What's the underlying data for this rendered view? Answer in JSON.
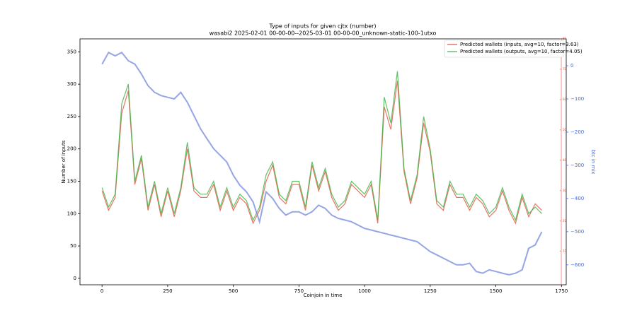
{
  "chart_data": {
    "type": "line",
    "title": "Type of inputs for given cjtx (number)",
    "subtitle": "wasabi2 2025-02-01 00-00-00--2025-03-01 00-00-00_unknown-static-100-1utxo",
    "xlabel": "Coinjoin in time",
    "ylabel": "Number of inputs",
    "y3label": "btc in mix",
    "xlim": [
      -84,
      1768
    ],
    "xticks": [
      0,
      250,
      500,
      750,
      1000,
      1250,
      1500,
      1750
    ],
    "ylim": [
      -10,
      370
    ],
    "yticks": [
      0,
      50,
      100,
      150,
      200,
      250,
      300,
      350
    ],
    "y2lim": [
      -1,
      80
    ],
    "y2ticks": [
      10,
      20,
      30,
      40,
      50,
      60,
      70,
      80
    ],
    "y3lim": [
      -660,
      81
    ],
    "y3ticks": [
      {
        "value": -600,
        "label": "−600"
      },
      {
        "value": -500,
        "label": "−500"
      },
      {
        "value": -400,
        "label": "−400"
      },
      {
        "value": -300,
        "label": "−300"
      },
      {
        "value": -200,
        "label": "−200"
      },
      {
        "value": -100,
        "label": "−100"
      },
      0
    ],
    "legend": "upper right",
    "x": [
      0,
      25,
      50,
      75,
      100,
      125,
      150,
      175,
      200,
      225,
      250,
      275,
      300,
      325,
      350,
      375,
      400,
      425,
      450,
      475,
      500,
      525,
      550,
      575,
      600,
      625,
      650,
      675,
      700,
      725,
      750,
      775,
      800,
      825,
      850,
      875,
      900,
      925,
      950,
      975,
      1000,
      1025,
      1050,
      1075,
      1100,
      1125,
      1150,
      1175,
      1200,
      1225,
      1250,
      1275,
      1300,
      1325,
      1350,
      1375,
      1400,
      1425,
      1450,
      1475,
      1500,
      1525,
      1550,
      1575,
      1600,
      1625,
      1650,
      1675
    ],
    "series": [
      {
        "name": "Predicted wallets (inputs, avg=10, factor=3.63)",
        "color": "#e0553f",
        "axis": "y",
        "values": [
          135,
          105,
          125,
          255,
          290,
          145,
          185,
          105,
          145,
          95,
          135,
          95,
          135,
          200,
          135,
          125,
          125,
          145,
          105,
          135,
          105,
          125,
          115,
          85,
          105,
          150,
          175,
          125,
          115,
          145,
          145,
          105,
          175,
          135,
          165,
          125,
          105,
          115,
          145,
          135,
          125,
          145,
          85,
          265,
          230,
          305,
          165,
          115,
          155,
          240,
          195,
          115,
          105,
          145,
          125,
          125,
          105,
          125,
          115,
          95,
          105,
          135,
          105,
          85,
          125,
          95,
          115,
          105
        ]
      },
      {
        "name": "Predicted wallets (outputs, avg=10, factor=4.05)",
        "color": "#3cb043",
        "axis": "y",
        "values": [
          140,
          110,
          130,
          270,
          300,
          150,
          190,
          110,
          150,
          100,
          140,
          100,
          140,
          210,
          140,
          130,
          130,
          150,
          110,
          140,
          110,
          130,
          120,
          90,
          110,
          160,
          180,
          130,
          120,
          150,
          150,
          110,
          180,
          140,
          170,
          130,
          110,
          120,
          150,
          140,
          130,
          150,
          90,
          280,
          240,
          320,
          170,
          120,
          160,
          250,
          200,
          120,
          110,
          150,
          130,
          130,
          110,
          130,
          120,
          100,
          110,
          140,
          110,
          90,
          130,
          100,
          110,
          100
        ]
      },
      {
        "color": "#7b8fe0",
        "axis": "y3",
        "values": [
          5,
          40,
          30,
          40,
          15,
          5,
          -25,
          -60,
          -80,
          -90,
          -95,
          -100,
          -80,
          -110,
          -150,
          -190,
          -220,
          -250,
          -270,
          -290,
          -330,
          -360,
          -380,
          -410,
          -470,
          -380,
          -400,
          -430,
          -450,
          -440,
          -440,
          -450,
          -440,
          -420,
          -430,
          -450,
          -460,
          -465,
          -470,
          -480,
          -490,
          -495,
          -500,
          -505,
          -510,
          -515,
          -520,
          -525,
          -530,
          -545,
          -560,
          -570,
          -580,
          -590,
          -600,
          -600,
          -595,
          -620,
          -625,
          -615,
          -620,
          -625,
          -630,
          -625,
          -615,
          -550,
          -540,
          -500
        ]
      }
    ]
  }
}
